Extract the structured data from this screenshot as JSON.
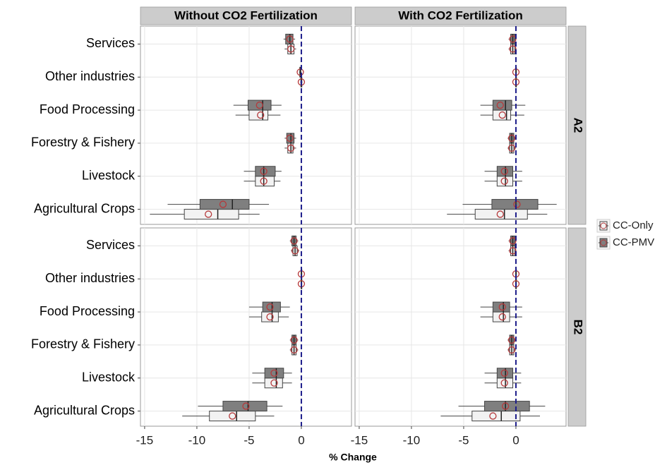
{
  "chart_data": {
    "type": "box",
    "x_label": "% Change",
    "columns": [
      "Without CO2 Fertilization",
      "With CO2 Fertilization"
    ],
    "rows": [
      "A2",
      "B2"
    ],
    "categories": [
      "Services",
      "Other industries",
      "Food Processing",
      "Forestry & Fishery",
      "Livestock",
      "Agricultural Crops"
    ],
    "xlim": [
      -15.4,
      4.8
    ],
    "xticks": [
      -15,
      -10,
      -5,
      0
    ],
    "reference_x": 0,
    "grid": true,
    "legend": "right",
    "mean_color": "#b5393b",
    "reference_color": "#1c1c8a",
    "series": [
      {
        "name": "CC-Only",
        "color": "#f2f2f2",
        "panels": [
          [
            {
              "low": -1.6,
              "q1": -1.3,
              "median": -1.0,
              "q3": -0.7,
              "high": -0.5,
              "mean": -1.0
            },
            {
              "low": -0.1,
              "q1": -0.05,
              "median": 0,
              "q3": 0.05,
              "high": 0.1,
              "mean": 0
            },
            {
              "low": -6.3,
              "q1": -5.0,
              "median": -3.7,
              "q3": -3.2,
              "high": -2.0,
              "mean": -3.9
            },
            {
              "low": -1.6,
              "q1": -1.3,
              "median": -1.0,
              "q3": -0.8,
              "high": -0.5,
              "mean": -1.0
            },
            {
              "low": -5.5,
              "q1": -4.4,
              "median": -3.6,
              "q3": -2.6,
              "high": -2.0,
              "mean": -3.6
            },
            {
              "low": -14.5,
              "q1": -11.2,
              "median": -8.0,
              "q3": -6.0,
              "high": -4.0,
              "mean": -8.9
            }
          ],
          [
            {
              "low": -0.7,
              "q1": -0.5,
              "median": -0.3,
              "q3": -0.1,
              "high": 0,
              "mean": -0.3
            },
            {
              "low": -0.05,
              "q1": -0.02,
              "median": 0,
              "q3": 0.02,
              "high": 0.05,
              "mean": 0
            },
            {
              "low": -3.4,
              "q1": -2.2,
              "median": -0.9,
              "q3": -0.5,
              "high": 0.8,
              "mean": -1.3
            },
            {
              "low": -0.8,
              "q1": -0.6,
              "median": -0.4,
              "q3": -0.2,
              "high": 0,
              "mean": -0.4
            },
            {
              "low": -3.0,
              "q1": -1.8,
              "median": -1.0,
              "q3": -0.3,
              "high": 0.6,
              "mean": -1.1
            },
            {
              "low": -6.6,
              "q1": -3.9,
              "median": -1.1,
              "q3": 1.1,
              "high": 3.0,
              "mean": -1.5
            }
          ],
          [
            {
              "low": -1.0,
              "q1": -0.8,
              "median": -0.6,
              "q3": -0.4,
              "high": -0.2,
              "mean": -0.6
            },
            {
              "low": -0.05,
              "q1": -0.02,
              "median": 0,
              "q3": 0.02,
              "high": 0.05,
              "mean": 0
            },
            {
              "low": -5.0,
              "q1": -3.8,
              "median": -2.8,
              "q3": -2.2,
              "high": -1.2,
              "mean": -3.0
            },
            {
              "low": -1.1,
              "q1": -0.9,
              "median": -0.7,
              "q3": -0.5,
              "high": -0.3,
              "mean": -0.7
            },
            {
              "low": -4.7,
              "q1": -3.5,
              "median": -2.4,
              "q3": -1.8,
              "high": -0.9,
              "mean": -2.6
            },
            {
              "low": -11.4,
              "q1": -8.8,
              "median": -6.2,
              "q3": -4.4,
              "high": -2.6,
              "mean": -6.6
            }
          ],
          [
            {
              "low": -0.7,
              "q1": -0.5,
              "median": -0.3,
              "q3": -0.1,
              "high": 0,
              "mean": -0.3
            },
            {
              "low": -0.05,
              "q1": -0.02,
              "median": 0,
              "q3": 0.02,
              "high": 0.05,
              "mean": 0
            },
            {
              "low": -3.4,
              "q1": -2.2,
              "median": -1.2,
              "q3": -0.6,
              "high": 0.6,
              "mean": -1.3
            },
            {
              "low": -0.8,
              "q1": -0.6,
              "median": -0.4,
              "q3": -0.2,
              "high": 0,
              "mean": -0.4
            },
            {
              "low": -3.0,
              "q1": -1.8,
              "median": -1.0,
              "q3": -0.3,
              "high": 0.5,
              "mean": -1.1
            },
            {
              "low": -7.2,
              "q1": -4.2,
              "median": -1.4,
              "q3": 0.4,
              "high": 2.3,
              "mean": -2.2
            }
          ]
        ]
      },
      {
        "name": "CC-PMV",
        "color": "#7f7f7f",
        "panels": [
          [
            {
              "low": -1.7,
              "q1": -1.5,
              "median": -1.1,
              "q3": -0.8,
              "high": -0.6,
              "mean": -1.1
            },
            {
              "low": -0.2,
              "q1": -0.15,
              "median": -0.1,
              "q3": -0.05,
              "high": 0,
              "mean": -0.1
            },
            {
              "low": -6.5,
              "q1": -5.1,
              "median": -3.7,
              "q3": -2.9,
              "high": -1.9,
              "mean": -4.0
            },
            {
              "low": -1.6,
              "q1": -1.4,
              "median": -1.0,
              "q3": -0.7,
              "high": -0.5,
              "mean": -1.1
            },
            {
              "low": -5.5,
              "q1": -4.4,
              "median": -3.6,
              "q3": -2.5,
              "high": -1.9,
              "mean": -3.6
            },
            {
              "low": -12.8,
              "q1": -9.7,
              "median": -6.6,
              "q3": -5.0,
              "high": -3.1,
              "mean": -7.5
            }
          ],
          [
            {
              "low": -0.7,
              "q1": -0.5,
              "median": -0.3,
              "q3": -0.1,
              "high": 0,
              "mean": -0.3
            },
            {
              "low": -0.05,
              "q1": -0.02,
              "median": 0,
              "q3": 0.02,
              "high": 0.05,
              "mean": 0
            },
            {
              "low": -3.4,
              "q1": -2.2,
              "median": -1.0,
              "q3": -0.4,
              "high": 0.9,
              "mean": -1.5
            },
            {
              "low": -0.8,
              "q1": -0.6,
              "median": -0.4,
              "q3": -0.2,
              "high": 0,
              "mean": -0.4
            },
            {
              "low": -3.0,
              "q1": -1.8,
              "median": -1.0,
              "q3": -0.3,
              "high": 0.6,
              "mean": -1.1
            },
            {
              "low": -5.1,
              "q1": -2.3,
              "median": 0,
              "q3": 2.1,
              "high": 3.9,
              "mean": 0.1
            }
          ],
          [
            {
              "low": -1.1,
              "q1": -0.9,
              "median": -0.7,
              "q3": -0.5,
              "high": -0.3,
              "mean": -0.7
            },
            {
              "low": -0.05,
              "q1": -0.02,
              "median": 0,
              "q3": 0.02,
              "high": 0.05,
              "mean": 0
            },
            {
              "low": -5.0,
              "q1": -3.7,
              "median": -2.8,
              "q3": -2.0,
              "high": -1.1,
              "mean": -3.0
            },
            {
              "low": -1.1,
              "q1": -0.9,
              "median": -0.7,
              "q3": -0.5,
              "high": -0.3,
              "mean": -0.7
            },
            {
              "low": -4.7,
              "q1": -3.5,
              "median": -2.4,
              "q3": -1.7,
              "high": -0.9,
              "mean": -2.6
            },
            {
              "low": -9.9,
              "q1": -7.5,
              "median": -5.1,
              "q3": -3.3,
              "high": -1.8,
              "mean": -5.3
            }
          ],
          [
            {
              "low": -0.7,
              "q1": -0.5,
              "median": -0.3,
              "q3": -0.1,
              "high": 0,
              "mean": -0.3
            },
            {
              "low": -0.05,
              "q1": -0.02,
              "median": 0,
              "q3": 0.02,
              "high": 0.05,
              "mean": 0
            },
            {
              "low": -3.4,
              "q1": -2.2,
              "median": -1.2,
              "q3": -0.6,
              "high": 0.6,
              "mean": -1.3
            },
            {
              "low": -0.8,
              "q1": -0.6,
              "median": -0.4,
              "q3": -0.2,
              "high": 0,
              "mean": -0.4
            },
            {
              "low": -3.0,
              "q1": -1.8,
              "median": -1.0,
              "q3": -0.3,
              "high": 0.5,
              "mean": -1.1
            },
            {
              "low": -5.5,
              "q1": -3.0,
              "median": -1.0,
              "q3": 1.3,
              "high": 2.8,
              "mean": -1.0
            }
          ]
        ]
      }
    ]
  }
}
